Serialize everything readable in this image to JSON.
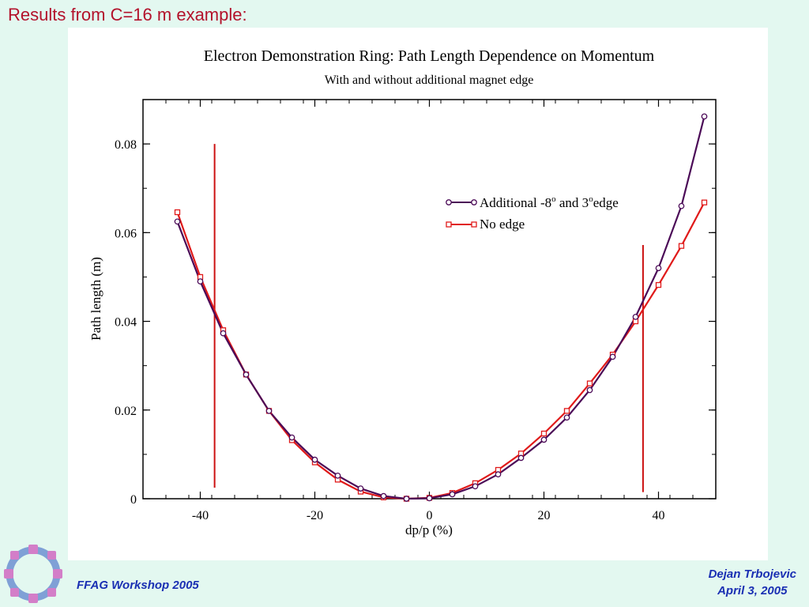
{
  "slide": {
    "title": "Results from C=16 m example:",
    "footer_left": "FFAG Workshop 2005",
    "footer_author": "Dejan Trbojevic",
    "footer_date": "April 3, 2005"
  },
  "colors": {
    "background": "#e3f8f0",
    "title": "#b3122b",
    "footer": "#1a2fb3",
    "series_edge": "#4b0a57",
    "series_noedge": "#e01a1a",
    "vlines": "#cc1111"
  },
  "chart_data": {
    "type": "line",
    "title": "Electron Demonstration Ring: Path Length Dependence on Momentum",
    "subtitle": "With and without additional magnet edge",
    "xlabel": "dp/p (%)",
    "ylabel": "Path length (m)",
    "xlim": [
      -50,
      50
    ],
    "ylim": [
      0,
      0.09
    ],
    "xticks": [
      -40,
      -20,
      0,
      20,
      40
    ],
    "xtick_labels": [
      "-40",
      "-20",
      "0",
      "20",
      "40"
    ],
    "yticks": [
      0,
      0.02,
      0.04,
      0.06,
      0.08
    ],
    "ytick_labels": [
      "0",
      "0.02",
      "0.04",
      "0.06",
      "0.08"
    ],
    "legend": {
      "position": "upper-right",
      "edge_prefix": "Additional -8",
      "edge_sup1": "o",
      "edge_mid": " and 3",
      "edge_sup2": "o",
      "edge_suffix": "edge",
      "noedge": "No edge"
    },
    "series": [
      {
        "name": "Additional -8° and 3°edge",
        "marker": "circle",
        "x": [
          -44,
          -40,
          -36,
          -32,
          -28,
          -24,
          -20,
          -16,
          -12,
          -8,
          -4,
          0,
          4,
          8,
          12,
          16,
          20,
          24,
          28,
          32,
          36,
          40,
          44,
          48
        ],
        "y": [
          0.0625,
          0.049,
          0.0373,
          0.028,
          0.0198,
          0.0138,
          0.0088,
          0.0052,
          0.0023,
          0.0006,
          0.0,
          0.0001,
          0.001,
          0.0028,
          0.0055,
          0.0092,
          0.0133,
          0.0183,
          0.0245,
          0.032,
          0.041,
          0.052,
          0.066,
          0.0862
        ]
      },
      {
        "name": "No edge",
        "marker": "square",
        "x": [
          -44,
          -40,
          -36,
          -32,
          -28,
          -24,
          -20,
          -16,
          -12,
          -8,
          -4,
          0,
          4,
          8,
          12,
          16,
          20,
          24,
          28,
          32,
          36,
          40,
          44,
          48
        ],
        "y": [
          0.0646,
          0.05,
          0.038,
          0.028,
          0.0198,
          0.0132,
          0.0082,
          0.0043,
          0.0016,
          0.0003,
          0.0,
          0.0002,
          0.0013,
          0.0035,
          0.0065,
          0.0102,
          0.0147,
          0.0198,
          0.026,
          0.0325,
          0.04,
          0.0482,
          0.057,
          0.0668
        ]
      }
    ],
    "vertical_lines": [
      {
        "x": -37.5,
        "y": [
          0.0025,
          0.08
        ]
      },
      {
        "x": 37.3,
        "y": [
          0.0015,
          0.0572
        ]
      }
    ]
  }
}
